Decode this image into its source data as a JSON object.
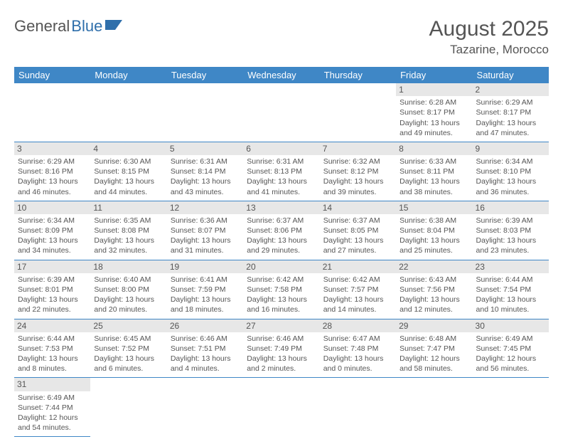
{
  "logo": {
    "part1": "General",
    "part2": "Blue"
  },
  "title": "August 2025",
  "location": "Tazarine, Morocco",
  "colors": {
    "header_bg": "#3f87c6",
    "header_text": "#ffffff",
    "daynum_bg": "#e7e7e7",
    "text": "#555555",
    "divider": "#3f87c6",
    "logo_blue": "#2f6fab"
  },
  "weekdays": [
    "Sunday",
    "Monday",
    "Tuesday",
    "Wednesday",
    "Thursday",
    "Friday",
    "Saturday"
  ],
  "weeks": [
    [
      null,
      null,
      null,
      null,
      null,
      {
        "n": "1",
        "sunrise": "Sunrise: 6:28 AM",
        "sunset": "Sunset: 8:17 PM",
        "day1": "Daylight: 13 hours",
        "day2": "and 49 minutes."
      },
      {
        "n": "2",
        "sunrise": "Sunrise: 6:29 AM",
        "sunset": "Sunset: 8:17 PM",
        "day1": "Daylight: 13 hours",
        "day2": "and 47 minutes."
      }
    ],
    [
      {
        "n": "3",
        "sunrise": "Sunrise: 6:29 AM",
        "sunset": "Sunset: 8:16 PM",
        "day1": "Daylight: 13 hours",
        "day2": "and 46 minutes."
      },
      {
        "n": "4",
        "sunrise": "Sunrise: 6:30 AM",
        "sunset": "Sunset: 8:15 PM",
        "day1": "Daylight: 13 hours",
        "day2": "and 44 minutes."
      },
      {
        "n": "5",
        "sunrise": "Sunrise: 6:31 AM",
        "sunset": "Sunset: 8:14 PM",
        "day1": "Daylight: 13 hours",
        "day2": "and 43 minutes."
      },
      {
        "n": "6",
        "sunrise": "Sunrise: 6:31 AM",
        "sunset": "Sunset: 8:13 PM",
        "day1": "Daylight: 13 hours",
        "day2": "and 41 minutes."
      },
      {
        "n": "7",
        "sunrise": "Sunrise: 6:32 AM",
        "sunset": "Sunset: 8:12 PM",
        "day1": "Daylight: 13 hours",
        "day2": "and 39 minutes."
      },
      {
        "n": "8",
        "sunrise": "Sunrise: 6:33 AM",
        "sunset": "Sunset: 8:11 PM",
        "day1": "Daylight: 13 hours",
        "day2": "and 38 minutes."
      },
      {
        "n": "9",
        "sunrise": "Sunrise: 6:34 AM",
        "sunset": "Sunset: 8:10 PM",
        "day1": "Daylight: 13 hours",
        "day2": "and 36 minutes."
      }
    ],
    [
      {
        "n": "10",
        "sunrise": "Sunrise: 6:34 AM",
        "sunset": "Sunset: 8:09 PM",
        "day1": "Daylight: 13 hours",
        "day2": "and 34 minutes."
      },
      {
        "n": "11",
        "sunrise": "Sunrise: 6:35 AM",
        "sunset": "Sunset: 8:08 PM",
        "day1": "Daylight: 13 hours",
        "day2": "and 32 minutes."
      },
      {
        "n": "12",
        "sunrise": "Sunrise: 6:36 AM",
        "sunset": "Sunset: 8:07 PM",
        "day1": "Daylight: 13 hours",
        "day2": "and 31 minutes."
      },
      {
        "n": "13",
        "sunrise": "Sunrise: 6:37 AM",
        "sunset": "Sunset: 8:06 PM",
        "day1": "Daylight: 13 hours",
        "day2": "and 29 minutes."
      },
      {
        "n": "14",
        "sunrise": "Sunrise: 6:37 AM",
        "sunset": "Sunset: 8:05 PM",
        "day1": "Daylight: 13 hours",
        "day2": "and 27 minutes."
      },
      {
        "n": "15",
        "sunrise": "Sunrise: 6:38 AM",
        "sunset": "Sunset: 8:04 PM",
        "day1": "Daylight: 13 hours",
        "day2": "and 25 minutes."
      },
      {
        "n": "16",
        "sunrise": "Sunrise: 6:39 AM",
        "sunset": "Sunset: 8:03 PM",
        "day1": "Daylight: 13 hours",
        "day2": "and 23 minutes."
      }
    ],
    [
      {
        "n": "17",
        "sunrise": "Sunrise: 6:39 AM",
        "sunset": "Sunset: 8:01 PM",
        "day1": "Daylight: 13 hours",
        "day2": "and 22 minutes."
      },
      {
        "n": "18",
        "sunrise": "Sunrise: 6:40 AM",
        "sunset": "Sunset: 8:00 PM",
        "day1": "Daylight: 13 hours",
        "day2": "and 20 minutes."
      },
      {
        "n": "19",
        "sunrise": "Sunrise: 6:41 AM",
        "sunset": "Sunset: 7:59 PM",
        "day1": "Daylight: 13 hours",
        "day2": "and 18 minutes."
      },
      {
        "n": "20",
        "sunrise": "Sunrise: 6:42 AM",
        "sunset": "Sunset: 7:58 PM",
        "day1": "Daylight: 13 hours",
        "day2": "and 16 minutes."
      },
      {
        "n": "21",
        "sunrise": "Sunrise: 6:42 AM",
        "sunset": "Sunset: 7:57 PM",
        "day1": "Daylight: 13 hours",
        "day2": "and 14 minutes."
      },
      {
        "n": "22",
        "sunrise": "Sunrise: 6:43 AM",
        "sunset": "Sunset: 7:56 PM",
        "day1": "Daylight: 13 hours",
        "day2": "and 12 minutes."
      },
      {
        "n": "23",
        "sunrise": "Sunrise: 6:44 AM",
        "sunset": "Sunset: 7:54 PM",
        "day1": "Daylight: 13 hours",
        "day2": "and 10 minutes."
      }
    ],
    [
      {
        "n": "24",
        "sunrise": "Sunrise: 6:44 AM",
        "sunset": "Sunset: 7:53 PM",
        "day1": "Daylight: 13 hours",
        "day2": "and 8 minutes."
      },
      {
        "n": "25",
        "sunrise": "Sunrise: 6:45 AM",
        "sunset": "Sunset: 7:52 PM",
        "day1": "Daylight: 13 hours",
        "day2": "and 6 minutes."
      },
      {
        "n": "26",
        "sunrise": "Sunrise: 6:46 AM",
        "sunset": "Sunset: 7:51 PM",
        "day1": "Daylight: 13 hours",
        "day2": "and 4 minutes."
      },
      {
        "n": "27",
        "sunrise": "Sunrise: 6:46 AM",
        "sunset": "Sunset: 7:49 PM",
        "day1": "Daylight: 13 hours",
        "day2": "and 2 minutes."
      },
      {
        "n": "28",
        "sunrise": "Sunrise: 6:47 AM",
        "sunset": "Sunset: 7:48 PM",
        "day1": "Daylight: 13 hours",
        "day2": "and 0 minutes."
      },
      {
        "n": "29",
        "sunrise": "Sunrise: 6:48 AM",
        "sunset": "Sunset: 7:47 PM",
        "day1": "Daylight: 12 hours",
        "day2": "and 58 minutes."
      },
      {
        "n": "30",
        "sunrise": "Sunrise: 6:49 AM",
        "sunset": "Sunset: 7:45 PM",
        "day1": "Daylight: 12 hours",
        "day2": "and 56 minutes."
      }
    ],
    [
      {
        "n": "31",
        "sunrise": "Sunrise: 6:49 AM",
        "sunset": "Sunset: 7:44 PM",
        "day1": "Daylight: 12 hours",
        "day2": "and 54 minutes."
      },
      null,
      null,
      null,
      null,
      null,
      null
    ]
  ]
}
